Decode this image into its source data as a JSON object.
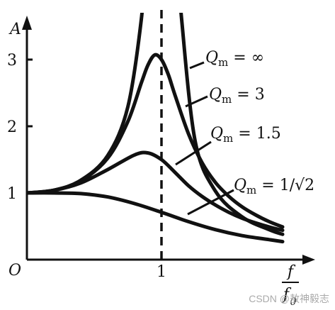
{
  "chart_data": {
    "type": "line",
    "title": "",
    "ylabel": "A",
    "xlabel_numerator": "f",
    "xlabel_denominator": "f",
    "xlabel_denominator_sub": "0",
    "origin_label": "O",
    "xlim": [
      0,
      2.0
    ],
    "ylim": [
      0,
      3.6
    ],
    "x_ticks": [
      {
        "value": 1,
        "label": "1"
      }
    ],
    "y_ticks": [
      {
        "value": 1,
        "label": "1"
      },
      {
        "value": 2,
        "label": "2"
      },
      {
        "value": 3,
        "label": "3"
      }
    ],
    "reference_line": {
      "x": 1,
      "style": "dashed"
    },
    "grid": false,
    "series": [
      {
        "name": "Q_m = ∞",
        "legend_prefix": "Q",
        "legend_sub": "m",
        "legend_suffix": " = ∞",
        "x": [
          0.0,
          0.2,
          0.4,
          0.6,
          0.75,
          0.85,
          0.88,
          1.12,
          1.15,
          1.25,
          1.4,
          1.6,
          1.8,
          1.9
        ],
        "y": [
          1.0,
          1.04,
          1.19,
          1.56,
          2.29,
          3.6,
          4.5,
          4.5,
          3.6,
          1.78,
          1.03,
          0.64,
          0.45,
          0.38
        ]
      },
      {
        "name": "Q_m = 3",
        "legend_prefix": "Q",
        "legend_sub": "m",
        "legend_suffix": " = 3",
        "x": [
          0.0,
          0.2,
          0.4,
          0.6,
          0.75,
          0.85,
          0.9,
          0.95,
          1.0,
          1.05,
          1.1,
          1.2,
          1.3,
          1.4,
          1.5,
          1.6,
          1.7,
          1.8,
          1.9
        ],
        "y": [
          1.0,
          1.04,
          1.18,
          1.52,
          2.07,
          2.65,
          2.92,
          3.07,
          3.0,
          2.78,
          2.47,
          1.89,
          1.46,
          1.16,
          0.95,
          0.79,
          0.67,
          0.57,
          0.49
        ]
      },
      {
        "name": "Q_m = 1.5",
        "legend_prefix": "Q",
        "legend_sub": "m",
        "legend_suffix": " = 1.5",
        "x": [
          0.0,
          0.2,
          0.4,
          0.6,
          0.8,
          0.9,
          1.0,
          1.1,
          1.2,
          1.3,
          1.4,
          1.5,
          1.6,
          1.7,
          1.8,
          1.9
        ],
        "y": [
          1.0,
          1.04,
          1.15,
          1.35,
          1.57,
          1.6,
          1.5,
          1.31,
          1.11,
          0.95,
          0.82,
          0.71,
          0.62,
          0.55,
          0.49,
          0.44
        ]
      },
      {
        "name": "Q_m = 1/√2",
        "legend_prefix": "Q",
        "legend_sub": "m",
        "legend_suffix": " = 1/√2",
        "x": [
          0.0,
          0.2,
          0.4,
          0.6,
          0.8,
          1.0,
          1.2,
          1.4,
          1.6,
          1.8,
          1.9
        ],
        "y": [
          1.0,
          1.0,
          0.99,
          0.94,
          0.84,
          0.71,
          0.57,
          0.45,
          0.36,
          0.3,
          0.27
        ]
      }
    ]
  },
  "watermark": "CSDN @敖神毅志"
}
